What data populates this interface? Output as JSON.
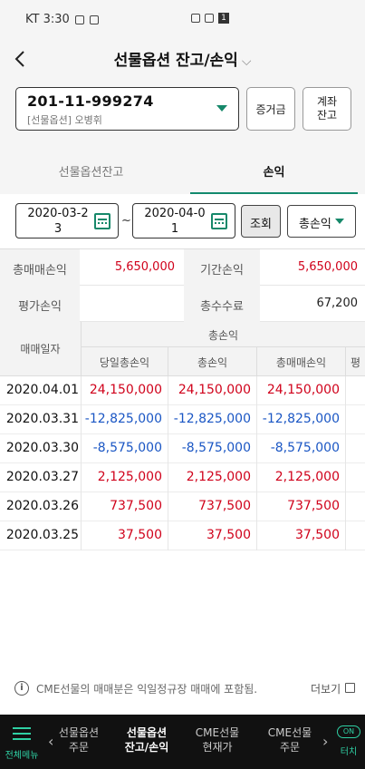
{
  "status_bar": {
    "carrier_time": "KT 3:30",
    "battery": "1"
  },
  "header": {
    "title": "선물옵션 잔고/손익",
    "title_chevron": "⌵"
  },
  "account": {
    "number": "201-11-999274",
    "sub": "[선물옵션] 오병휘"
  },
  "buttons": {
    "margin": "증거금",
    "account_balance_line1": "계좌",
    "account_balance_line2": "잔고",
    "query": "조회"
  },
  "tabs": [
    {
      "label": "선물옵션잔고"
    },
    {
      "label": "손익"
    }
  ],
  "filter": {
    "date_from": "2020-03-23",
    "date_to": "2020-04-01",
    "tilde": "~",
    "select": "총손익"
  },
  "summary": {
    "total_trade_pl_label": "총매매손익",
    "total_trade_pl": "5,650,000",
    "period_pl_label": "기간손익",
    "period_pl": "5,650,000",
    "eval_pl_label": "평가손익",
    "eval_pl": "",
    "total_fee_label": "총수수료",
    "total_fee": "67,200"
  },
  "table": {
    "date_header": "매매일자",
    "group_header": "총손익",
    "sub_headers": [
      "당일총손익",
      "총손익",
      "총매매손익",
      "평"
    ],
    "rows": [
      {
        "date": "2020.04.01",
        "v1": "24,150,000",
        "v2": "24,150,000",
        "v3": "24,150,000",
        "color": "#d0021b"
      },
      {
        "date": "2020.03.31",
        "v1": "-12,825,000",
        "v2": "-12,825,000",
        "v3": "-12,825,000",
        "color": "#1a56c4"
      },
      {
        "date": "2020.03.30",
        "v1": "-8,575,000",
        "v2": "-8,575,000",
        "v3": "-8,575,000",
        "color": "#1a56c4"
      },
      {
        "date": "2020.03.27",
        "v1": "2,125,000",
        "v2": "2,125,000",
        "v3": "2,125,000",
        "color": "#d0021b"
      },
      {
        "date": "2020.03.26",
        "v1": "737,500",
        "v2": "737,500",
        "v3": "737,500",
        "color": "#d0021b"
      },
      {
        "date": "2020.03.25",
        "v1": "37,500",
        "v2": "37,500",
        "v3": "37,500",
        "color": "#d0021b"
      }
    ]
  },
  "notice": {
    "info_icon": "i",
    "text": "CME선물의 매매분은 익일정규장 매매에 포함됨.",
    "more": "더보기"
  },
  "bottom_nav": {
    "menu": "전체메뉴",
    "left_arrow": "‹",
    "right_arrow": "›",
    "items": [
      {
        "line1": "선물옵션",
        "line2": "주문"
      },
      {
        "line1": "선물옵션",
        "line2": "잔고/손익"
      },
      {
        "line1": "CME선물",
        "line2": "현재가"
      },
      {
        "line1": "CME선물",
        "line2": "주문"
      }
    ],
    "on_badge": "ON",
    "on_label": "터치"
  }
}
